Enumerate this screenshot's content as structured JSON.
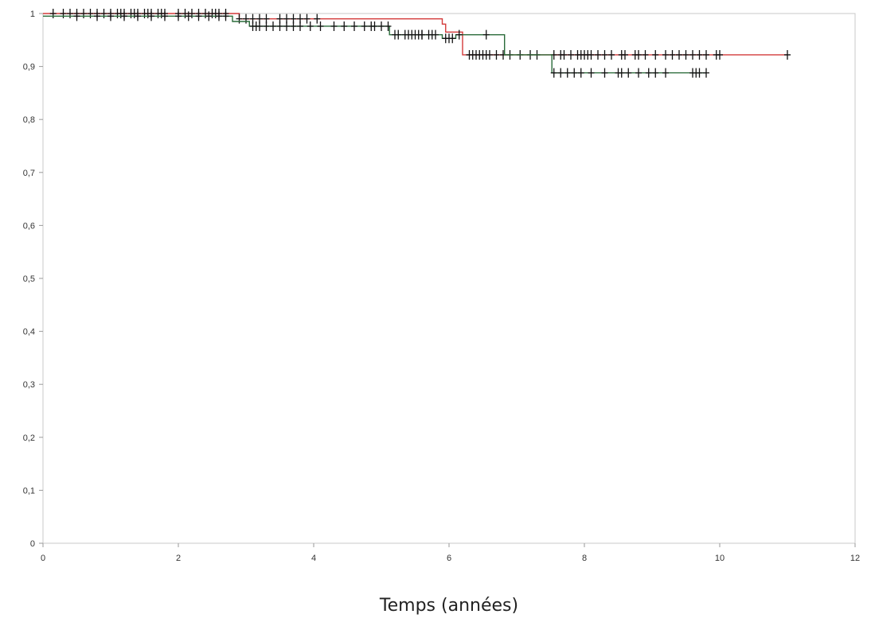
{
  "chart_data": {
    "type": "line",
    "title": "",
    "xlabel": "Temps (années)",
    "ylabel": "",
    "xlim": [
      0,
      12
    ],
    "ylim": [
      0,
      1
    ],
    "x_ticks": [
      0,
      2,
      4,
      6,
      8,
      10,
      12
    ],
    "x_tick_labels": [
      "0",
      "2",
      "4",
      "6",
      "8",
      "10",
      "12"
    ],
    "y_ticks": [
      0,
      0.1,
      0.2,
      0.3,
      0.4,
      0.5,
      0.6,
      0.7,
      0.8,
      0.9,
      1
    ],
    "y_tick_labels": [
      "0",
      "0,1",
      "0,2",
      "0,3",
      "0,4",
      "0,5",
      "0,6",
      "0,7",
      "0,8",
      "0,9",
      "1"
    ],
    "grid": false,
    "legend": "none",
    "censor_marker": "+",
    "series": [
      {
        "color": "#d43a3a",
        "steps": [
          [
            0,
            1.0
          ],
          [
            2.9,
            0.99
          ],
          [
            5.9,
            0.98
          ],
          [
            5.95,
            0.965
          ],
          [
            6.2,
            0.922
          ],
          [
            11.0,
            0.922
          ]
        ],
        "censored": [
          0.15,
          0.3,
          0.4,
          0.5,
          0.6,
          0.7,
          0.8,
          0.9,
          1.0,
          1.1,
          1.15,
          1.2,
          1.3,
          1.35,
          1.4,
          1.5,
          1.55,
          1.6,
          1.7,
          1.75,
          1.8,
          2.0,
          2.1,
          2.2,
          2.3,
          2.4,
          2.5,
          2.55,
          2.6,
          2.7,
          2.9,
          3.0,
          3.1,
          3.2,
          3.3,
          3.5,
          3.6,
          3.7,
          3.8,
          3.9,
          4.05,
          6.3,
          6.35,
          6.4,
          6.45,
          6.5,
          6.55,
          6.6,
          6.7,
          6.8,
          6.9,
          7.05,
          7.2,
          7.3,
          7.55,
          7.65,
          7.7,
          7.8,
          7.9,
          7.95,
          8.0,
          8.05,
          8.1,
          8.2,
          8.3,
          8.4,
          8.55,
          8.6,
          8.75,
          8.8,
          8.9,
          9.05,
          9.2,
          9.3,
          9.4,
          9.5,
          9.6,
          9.7,
          9.8,
          9.95,
          10.0,
          11.0
        ]
      },
      {
        "color": "#2a6b3a",
        "steps": [
          [
            0,
            0.995
          ],
          [
            2.8,
            0.985
          ],
          [
            3.05,
            0.976
          ],
          [
            5.1,
            0.976
          ],
          [
            5.12,
            0.96
          ],
          [
            5.9,
            0.953
          ],
          [
            6.1,
            0.96
          ],
          [
            6.8,
            0.96
          ],
          [
            6.82,
            0.922
          ],
          [
            7.5,
            0.922
          ],
          [
            7.52,
            0.888
          ],
          [
            9.8,
            0.888
          ]
        ],
        "censored": [
          0.5,
          0.8,
          1.0,
          1.2,
          1.4,
          1.6,
          1.8,
          2.0,
          2.15,
          2.3,
          2.45,
          2.6,
          2.7,
          3.1,
          3.15,
          3.2,
          3.3,
          3.4,
          3.5,
          3.6,
          3.7,
          3.8,
          3.95,
          4.1,
          4.3,
          4.45,
          4.6,
          4.75,
          4.85,
          4.9,
          5.0,
          5.1,
          5.2,
          5.35,
          5.4,
          5.5,
          5.55,
          5.6,
          5.7,
          5.8,
          5.25,
          5.45,
          5.6,
          5.75,
          5.95,
          6.0,
          6.05,
          6.15,
          6.55,
          7.55,
          7.65,
          7.75,
          7.85,
          7.95,
          8.1,
          8.3,
          8.5,
          8.55,
          8.65,
          8.8,
          8.95,
          9.05,
          9.2,
          9.6,
          9.65,
          9.7,
          9.8
        ]
      }
    ]
  }
}
